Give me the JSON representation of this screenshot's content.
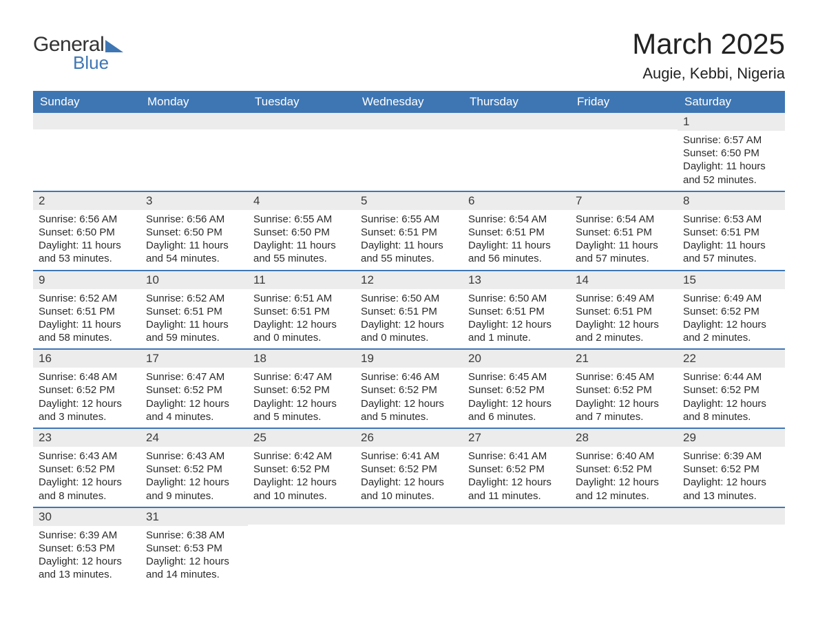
{
  "logo": {
    "word1": "General",
    "word2": "Blue"
  },
  "title": "March 2025",
  "location": "Augie, Kebbi, Nigeria",
  "colors": {
    "header_bg": "#3e76b4",
    "header_fg": "#ffffff",
    "daynum_bg": "#ececec",
    "row_divider": "#3e76b4",
    "text": "#2b2b2b"
  },
  "days_of_week": [
    "Sunday",
    "Monday",
    "Tuesday",
    "Wednesday",
    "Thursday",
    "Friday",
    "Saturday"
  ],
  "weeks": [
    [
      {
        "n": "",
        "lines": []
      },
      {
        "n": "",
        "lines": []
      },
      {
        "n": "",
        "lines": []
      },
      {
        "n": "",
        "lines": []
      },
      {
        "n": "",
        "lines": []
      },
      {
        "n": "",
        "lines": []
      },
      {
        "n": "1",
        "lines": [
          "Sunrise: 6:57 AM",
          "Sunset: 6:50 PM",
          "Daylight: 11 hours and 52 minutes."
        ]
      }
    ],
    [
      {
        "n": "2",
        "lines": [
          "Sunrise: 6:56 AM",
          "Sunset: 6:50 PM",
          "Daylight: 11 hours and 53 minutes."
        ]
      },
      {
        "n": "3",
        "lines": [
          "Sunrise: 6:56 AM",
          "Sunset: 6:50 PM",
          "Daylight: 11 hours and 54 minutes."
        ]
      },
      {
        "n": "4",
        "lines": [
          "Sunrise: 6:55 AM",
          "Sunset: 6:50 PM",
          "Daylight: 11 hours and 55 minutes."
        ]
      },
      {
        "n": "5",
        "lines": [
          "Sunrise: 6:55 AM",
          "Sunset: 6:51 PM",
          "Daylight: 11 hours and 55 minutes."
        ]
      },
      {
        "n": "6",
        "lines": [
          "Sunrise: 6:54 AM",
          "Sunset: 6:51 PM",
          "Daylight: 11 hours and 56 minutes."
        ]
      },
      {
        "n": "7",
        "lines": [
          "Sunrise: 6:54 AM",
          "Sunset: 6:51 PM",
          "Daylight: 11 hours and 57 minutes."
        ]
      },
      {
        "n": "8",
        "lines": [
          "Sunrise: 6:53 AM",
          "Sunset: 6:51 PM",
          "Daylight: 11 hours and 57 minutes."
        ]
      }
    ],
    [
      {
        "n": "9",
        "lines": [
          "Sunrise: 6:52 AM",
          "Sunset: 6:51 PM",
          "Daylight: 11 hours and 58 minutes."
        ]
      },
      {
        "n": "10",
        "lines": [
          "Sunrise: 6:52 AM",
          "Sunset: 6:51 PM",
          "Daylight: 11 hours and 59 minutes."
        ]
      },
      {
        "n": "11",
        "lines": [
          "Sunrise: 6:51 AM",
          "Sunset: 6:51 PM",
          "Daylight: 12 hours and 0 minutes."
        ]
      },
      {
        "n": "12",
        "lines": [
          "Sunrise: 6:50 AM",
          "Sunset: 6:51 PM",
          "Daylight: 12 hours and 0 minutes."
        ]
      },
      {
        "n": "13",
        "lines": [
          "Sunrise: 6:50 AM",
          "Sunset: 6:51 PM",
          "Daylight: 12 hours and 1 minute."
        ]
      },
      {
        "n": "14",
        "lines": [
          "Sunrise: 6:49 AM",
          "Sunset: 6:51 PM",
          "Daylight: 12 hours and 2 minutes."
        ]
      },
      {
        "n": "15",
        "lines": [
          "Sunrise: 6:49 AM",
          "Sunset: 6:52 PM",
          "Daylight: 12 hours and 2 minutes."
        ]
      }
    ],
    [
      {
        "n": "16",
        "lines": [
          "Sunrise: 6:48 AM",
          "Sunset: 6:52 PM",
          "Daylight: 12 hours and 3 minutes."
        ]
      },
      {
        "n": "17",
        "lines": [
          "Sunrise: 6:47 AM",
          "Sunset: 6:52 PM",
          "Daylight: 12 hours and 4 minutes."
        ]
      },
      {
        "n": "18",
        "lines": [
          "Sunrise: 6:47 AM",
          "Sunset: 6:52 PM",
          "Daylight: 12 hours and 5 minutes."
        ]
      },
      {
        "n": "19",
        "lines": [
          "Sunrise: 6:46 AM",
          "Sunset: 6:52 PM",
          "Daylight: 12 hours and 5 minutes."
        ]
      },
      {
        "n": "20",
        "lines": [
          "Sunrise: 6:45 AM",
          "Sunset: 6:52 PM",
          "Daylight: 12 hours and 6 minutes."
        ]
      },
      {
        "n": "21",
        "lines": [
          "Sunrise: 6:45 AM",
          "Sunset: 6:52 PM",
          "Daylight: 12 hours and 7 minutes."
        ]
      },
      {
        "n": "22",
        "lines": [
          "Sunrise: 6:44 AM",
          "Sunset: 6:52 PM",
          "Daylight: 12 hours and 8 minutes."
        ]
      }
    ],
    [
      {
        "n": "23",
        "lines": [
          "Sunrise: 6:43 AM",
          "Sunset: 6:52 PM",
          "Daylight: 12 hours and 8 minutes."
        ]
      },
      {
        "n": "24",
        "lines": [
          "Sunrise: 6:43 AM",
          "Sunset: 6:52 PM",
          "Daylight: 12 hours and 9 minutes."
        ]
      },
      {
        "n": "25",
        "lines": [
          "Sunrise: 6:42 AM",
          "Sunset: 6:52 PM",
          "Daylight: 12 hours and 10 minutes."
        ]
      },
      {
        "n": "26",
        "lines": [
          "Sunrise: 6:41 AM",
          "Sunset: 6:52 PM",
          "Daylight: 12 hours and 10 minutes."
        ]
      },
      {
        "n": "27",
        "lines": [
          "Sunrise: 6:41 AM",
          "Sunset: 6:52 PM",
          "Daylight: 12 hours and 11 minutes."
        ]
      },
      {
        "n": "28",
        "lines": [
          "Sunrise: 6:40 AM",
          "Sunset: 6:52 PM",
          "Daylight: 12 hours and 12 minutes."
        ]
      },
      {
        "n": "29",
        "lines": [
          "Sunrise: 6:39 AM",
          "Sunset: 6:52 PM",
          "Daylight: 12 hours and 13 minutes."
        ]
      }
    ],
    [
      {
        "n": "30",
        "lines": [
          "Sunrise: 6:39 AM",
          "Sunset: 6:53 PM",
          "Daylight: 12 hours and 13 minutes."
        ]
      },
      {
        "n": "31",
        "lines": [
          "Sunrise: 6:38 AM",
          "Sunset: 6:53 PM",
          "Daylight: 12 hours and 14 minutes."
        ]
      },
      {
        "n": "",
        "lines": []
      },
      {
        "n": "",
        "lines": []
      },
      {
        "n": "",
        "lines": []
      },
      {
        "n": "",
        "lines": []
      },
      {
        "n": "",
        "lines": []
      }
    ]
  ]
}
